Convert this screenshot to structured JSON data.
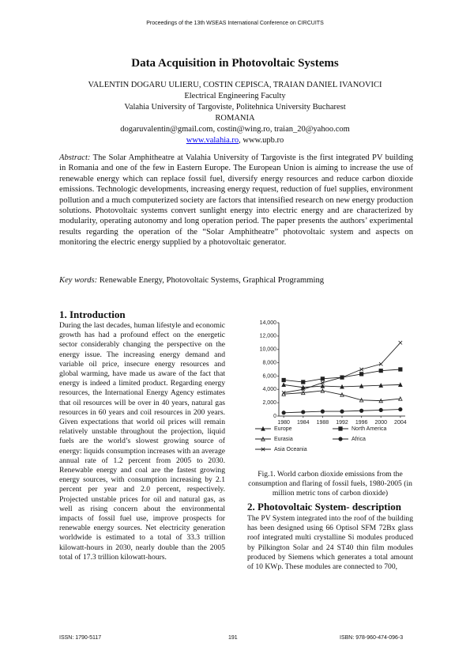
{
  "header": {
    "running_title": "Proceedings of the 13th WSEAS International Conference on CIRCUITS"
  },
  "paper": {
    "title": "Data Acquisition in Photovoltaic Systems",
    "authors": "VALENTIN DOGARU ULIERU, COSTIN CEPISCA, TRAIAN DANIEL IVANOVICI",
    "affiliation": [
      "Electrical Engineering Faculty",
      "Valahia University of Targoviste, Politehnica University Bucharest",
      "ROMANIA"
    ],
    "emails": "dogaruvalentin@gmail.com, costin@wing.ro, traian_20@yahoo.com",
    "links": [
      "www.valahia.ro",
      ", www.upb.ro"
    ],
    "abstract": {
      "label": "Abstract:",
      "text": "The Solar Amphitheatre at Valahia University of Targoviste is the first integrated PV building in Romania and one of the few in Eastern Europe. The European Union is aiming to increase the use of renewable energy which can replace fossil fuel, diversify energy resources and reduce carbon dioxide emissions. Technologic developments, increasing energy request, reduction of fuel supplies, environment pollution and a much computerized society are factors that intensified research on new energy production solutions. Photovoltaic systems convert sunlight energy into electric energy and are characterized by modularity, operating autonomy and long operation period. The paper presents the authors’ experimental results regarding the operation of the “Solar Amphitheatre” photovoltaic system and aspects on monitoring the electric energy supplied by a photovoltaic generator."
    },
    "keywords": {
      "label": "Key words:",
      "text": "Renewable Energy, Photovoltaic Systems, Graphical Programming"
    },
    "sections": [
      {
        "heading": "1. Introduction",
        "text": "During the last decades, human lifestyle and economic growth has had a profound effect on the energetic sector considerably changing the perspective on the energy issue. The increasing energy demand and variable oil price, insecure energy resources and global warming, have made us aware of the fact that energy is indeed a limited product. Regarding energy resources, the International Energy Agency estimates that oil resources will be over in 40 years, natural gas resources in 60 years and coil resources in 200 years. Given expectations that world oil prices will remain relatively unstable throughout the projection, liquid fuels are the world’s slowest growing source of energy: liquids consumption increases with an average annual rate of 1.2 percent from 2005 to 2030. Renewable energy and coal are the fastest growing energy sources, with consumption increasing by 2.1 percent per year and 2.0 percent, respectively. Projected unstable prices for oil and natural gas, as well as rising concern about the environmental impacts of fossil fuel use, improve prospects for renewable energy sources. Net electricity generation worldwide is estimated to a total of 33.3 trillion kilowatt-hours in 2030, nearly double than the 2005 total of 17.3 trillion kilowatt-hours."
      },
      {
        "heading": "2. Photovoltaic System- description",
        "text": "The PV System integrated into the roof of the building has been designed using 66 Optisol SFM 72Bx glass roof integrated multi crystalline Si modules produced by Pilkington Solar and 24 ST40 thin film modules produced by Siemens which generates a total amount of 10 KWp. These modules are connected to 700,"
      }
    ],
    "figure": {
      "caption": "Fig.1. World carbon dioxide emissions from the consumption and flaring of fossil fuels, 1980-2005 (in million metric tons of carbon dioxide)"
    }
  },
  "chart_data": {
    "type": "line",
    "x": [
      1980,
      1984,
      1988,
      1992,
      1996,
      2000,
      2004
    ],
    "xlim": [
      1979,
      2005
    ],
    "xticks": [
      1980,
      1984,
      1988,
      1992,
      1996,
      2000,
      2004
    ],
    "ylim": [
      0,
      14000
    ],
    "yticks": [
      0,
      {
        "value": 2000,
        "label": "2,000"
      },
      {
        "value": 4000,
        "label": "4,000"
      },
      {
        "value": 6000,
        "label": "6,000"
      },
      {
        "value": 8000,
        "label": "8,000"
      },
      {
        "value": 10000,
        "label": "10,000"
      },
      {
        "value": 12000,
        "label": "12,000"
      },
      {
        "value": 14000,
        "label": "14,000"
      }
    ],
    "series": [
      {
        "name": "Europe",
        "color": "#222222",
        "marker": "triangle",
        "values": [
          4700,
          4300,
          4500,
          4400,
          4500,
          4600,
          4700
        ]
      },
      {
        "name": "North America",
        "color": "#222222",
        "marker": "square",
        "values": [
          5400,
          5100,
          5600,
          5800,
          6300,
          6800,
          7000
        ]
      },
      {
        "name": "Eurasia",
        "color": "#222222",
        "marker": "open-triangle",
        "values": [
          3300,
          3500,
          3800,
          3200,
          2400,
          2300,
          2600
        ]
      },
      {
        "name": "Africa",
        "color": "#222222",
        "marker": "circle",
        "values": [
          500,
          600,
          700,
          700,
          800,
          900,
          1000
        ]
      },
      {
        "name": "Asia Oceania",
        "color": "#222222",
        "marker": "cross",
        "values": [
          3500,
          4000,
          5000,
          5800,
          7000,
          7800,
          11000
        ]
      }
    ]
  },
  "footer": {
    "issn": "ISSN: 1790-5117",
    "page": "191",
    "isbn": "ISBN: 978-960-474-096-3"
  }
}
